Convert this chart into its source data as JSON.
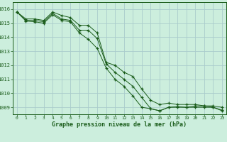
{
  "title": "Graphe pression niveau de la mer (hPa)",
  "background_color": "#cceedd",
  "grid_color": "#aacccc",
  "line_color": "#1a5c1a",
  "marker_color": "#1a5c1a",
  "ylim": [
    1008.5,
    1016.5
  ],
  "xlim": [
    -0.5,
    23.5
  ],
  "yticks": [
    1009,
    1010,
    1011,
    1012,
    1013,
    1014,
    1015,
    1016
  ],
  "xticks": [
    0,
    1,
    2,
    3,
    4,
    5,
    6,
    7,
    8,
    9,
    10,
    11,
    12,
    13,
    14,
    15,
    16,
    17,
    18,
    19,
    20,
    21,
    22,
    23
  ],
  "series": [
    [
      1015.8,
      1015.2,
      1015.2,
      1015.1,
      1015.7,
      1015.3,
      1015.2,
      1014.5,
      1014.5,
      1013.9,
      1012.1,
      1011.5,
      1011.0,
      1010.5,
      1009.7,
      1008.9,
      1008.75,
      1009.0,
      1009.0,
      1009.0,
      1009.1,
      1009.1,
      1009.0,
      1008.8
    ],
    [
      1015.8,
      1015.3,
      1015.3,
      1015.2,
      1015.8,
      1015.55,
      1015.4,
      1014.85,
      1014.85,
      1014.3,
      1012.2,
      1012.0,
      1011.5,
      1011.2,
      1010.3,
      1009.5,
      1009.2,
      1009.3,
      1009.2,
      1009.2,
      1009.2,
      1009.1,
      1009.1,
      1009.0
    ],
    [
      1015.8,
      1015.15,
      1015.1,
      1015.0,
      1015.6,
      1015.2,
      1015.1,
      1014.3,
      1013.85,
      1013.2,
      1011.8,
      1011.0,
      1010.5,
      1009.8,
      1009.0,
      1008.9,
      1008.75,
      1009.0,
      1009.05,
      1009.0,
      1009.0,
      1009.0,
      1009.0,
      1008.75
    ]
  ]
}
